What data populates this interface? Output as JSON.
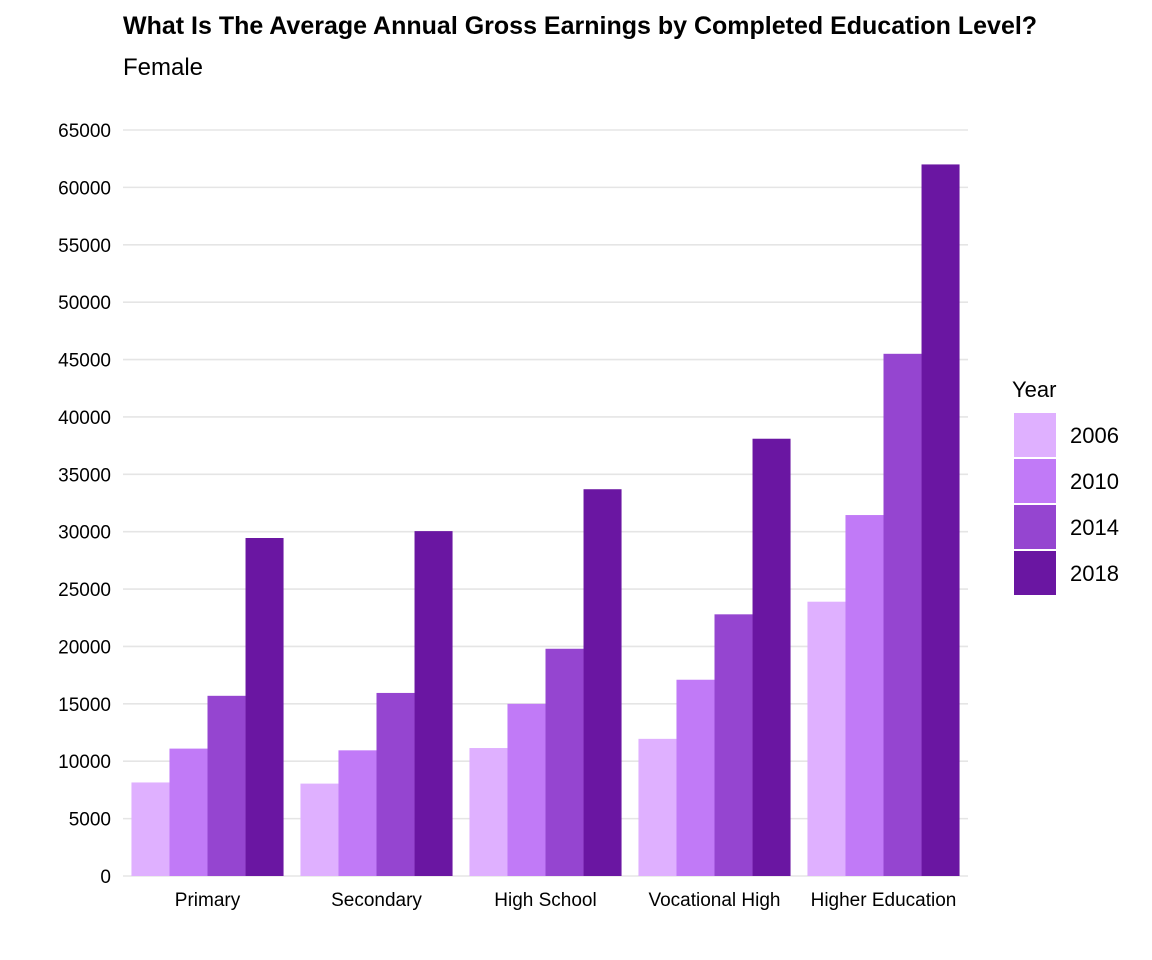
{
  "chart_data": {
    "type": "bar",
    "title": "What Is The Average Annual Gross Earnings by Completed Education Level?",
    "subtitle": "Female",
    "xlabel": "",
    "ylabel": "",
    "categories": [
      "Primary",
      "Secondary",
      "High School",
      "Vocational High",
      "Higher Education"
    ],
    "series": [
      {
        "name": "2006",
        "color": "#dfb0ff",
        "values": [
          8150,
          8050,
          11150,
          11950,
          23900
        ]
      },
      {
        "name": "2010",
        "color": "#c17af7",
        "values": [
          11100,
          10950,
          15000,
          17100,
          31450
        ]
      },
      {
        "name": "2014",
        "color": "#9545d0",
        "values": [
          15700,
          15950,
          19800,
          22800,
          45500
        ]
      },
      {
        "name": "2018",
        "color": "#6a16a2",
        "values": [
          29450,
          30050,
          33700,
          38100,
          62000
        ]
      }
    ],
    "ylim": [
      0,
      65000
    ],
    "yticks": [
      0,
      5000,
      10000,
      15000,
      20000,
      25000,
      30000,
      35000,
      40000,
      45000,
      50000,
      55000,
      60000,
      65000
    ],
    "grid": true,
    "legend": {
      "title": "Year",
      "position": "right"
    }
  }
}
